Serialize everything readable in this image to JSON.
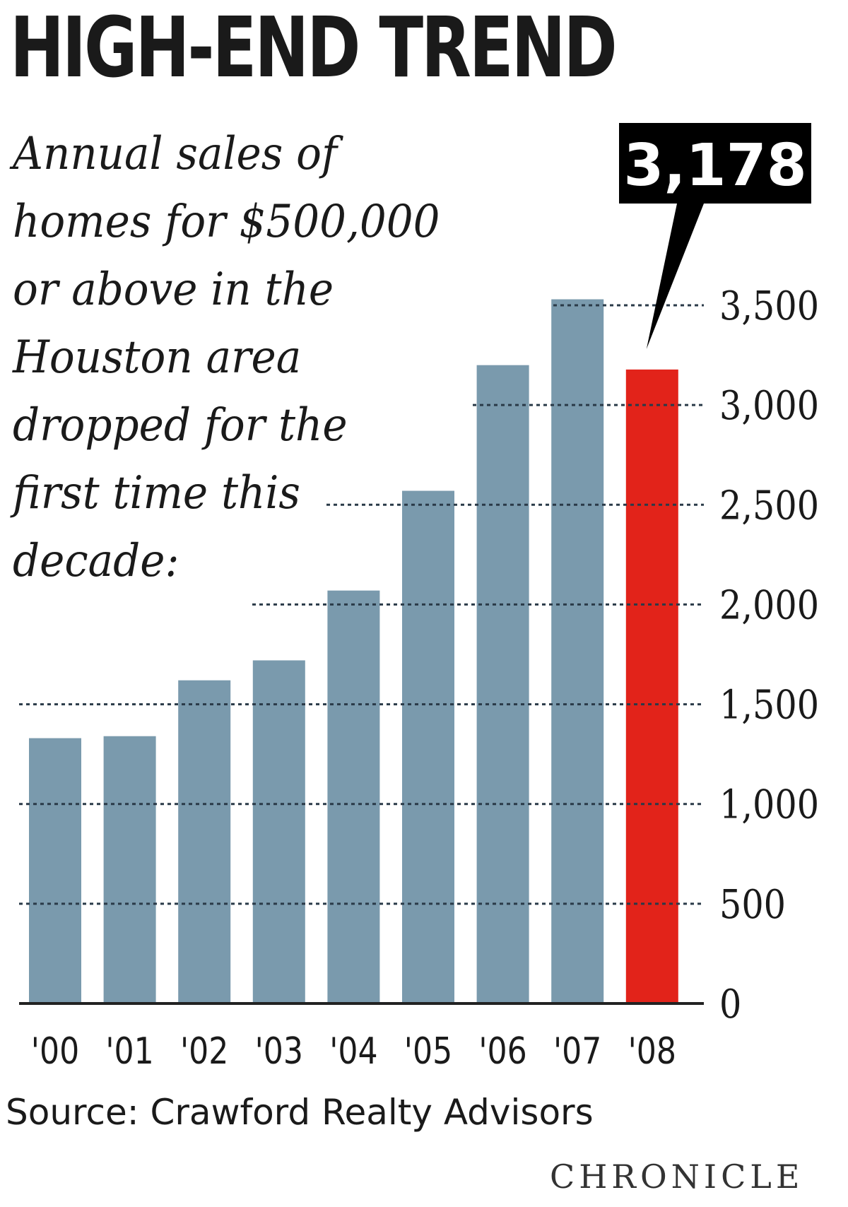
{
  "chart_data": {
    "type": "bar",
    "title": "HIGH-END TREND",
    "subtitle_lines": [
      "Annual sales of",
      "homes for $500,000",
      "or above in the",
      "Houston area",
      "dropped for the",
      "first time this",
      "decade:"
    ],
    "categories": [
      "'00",
      "'01",
      "'02",
      "'03",
      "'04",
      "'05",
      "'06",
      "'07",
      "'08"
    ],
    "values": [
      1330,
      1340,
      1620,
      1720,
      2070,
      2570,
      3200,
      3530,
      3178
    ],
    "highlight": {
      "index": 8,
      "label": "3,178",
      "color": "#e2231a"
    },
    "bar_color": "#7a9aad",
    "ylim": [
      0,
      3500
    ],
    "yticks": [
      0,
      500,
      1000,
      1500,
      2000,
      2500,
      3000,
      3500
    ],
    "ytick_labels": [
      "0",
      "500",
      "1,000",
      "1,500",
      "2,000",
      "2,500",
      "3,000",
      "3,500"
    ],
    "y_axis_position": "right",
    "grid": "dotted horizontal",
    "source": "Source: Crawford Realty Advisors"
  },
  "branding": {
    "logo_text": "CHRONICLE"
  }
}
